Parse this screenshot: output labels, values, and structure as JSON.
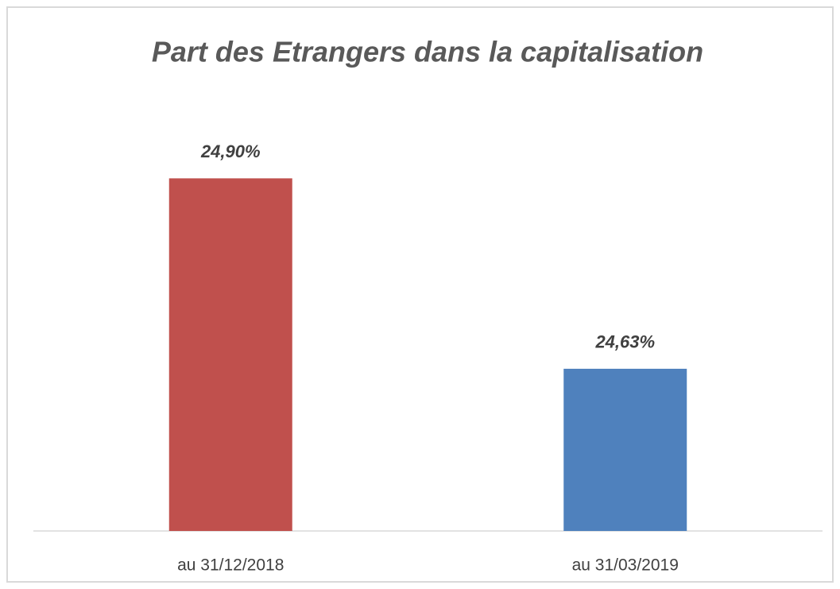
{
  "chart_data": {
    "type": "bar",
    "title": "Part des Etrangers dans la capitalisation",
    "categories": [
      "au 31/12/2018",
      "au 31/03/2019"
    ],
    "values": [
      24.9,
      24.63
    ],
    "value_labels": [
      "24,90%",
      "24,63%"
    ],
    "colors": [
      "#c0504d",
      "#4f81bd"
    ],
    "ylim": [
      24.4,
      24.95
    ]
  }
}
